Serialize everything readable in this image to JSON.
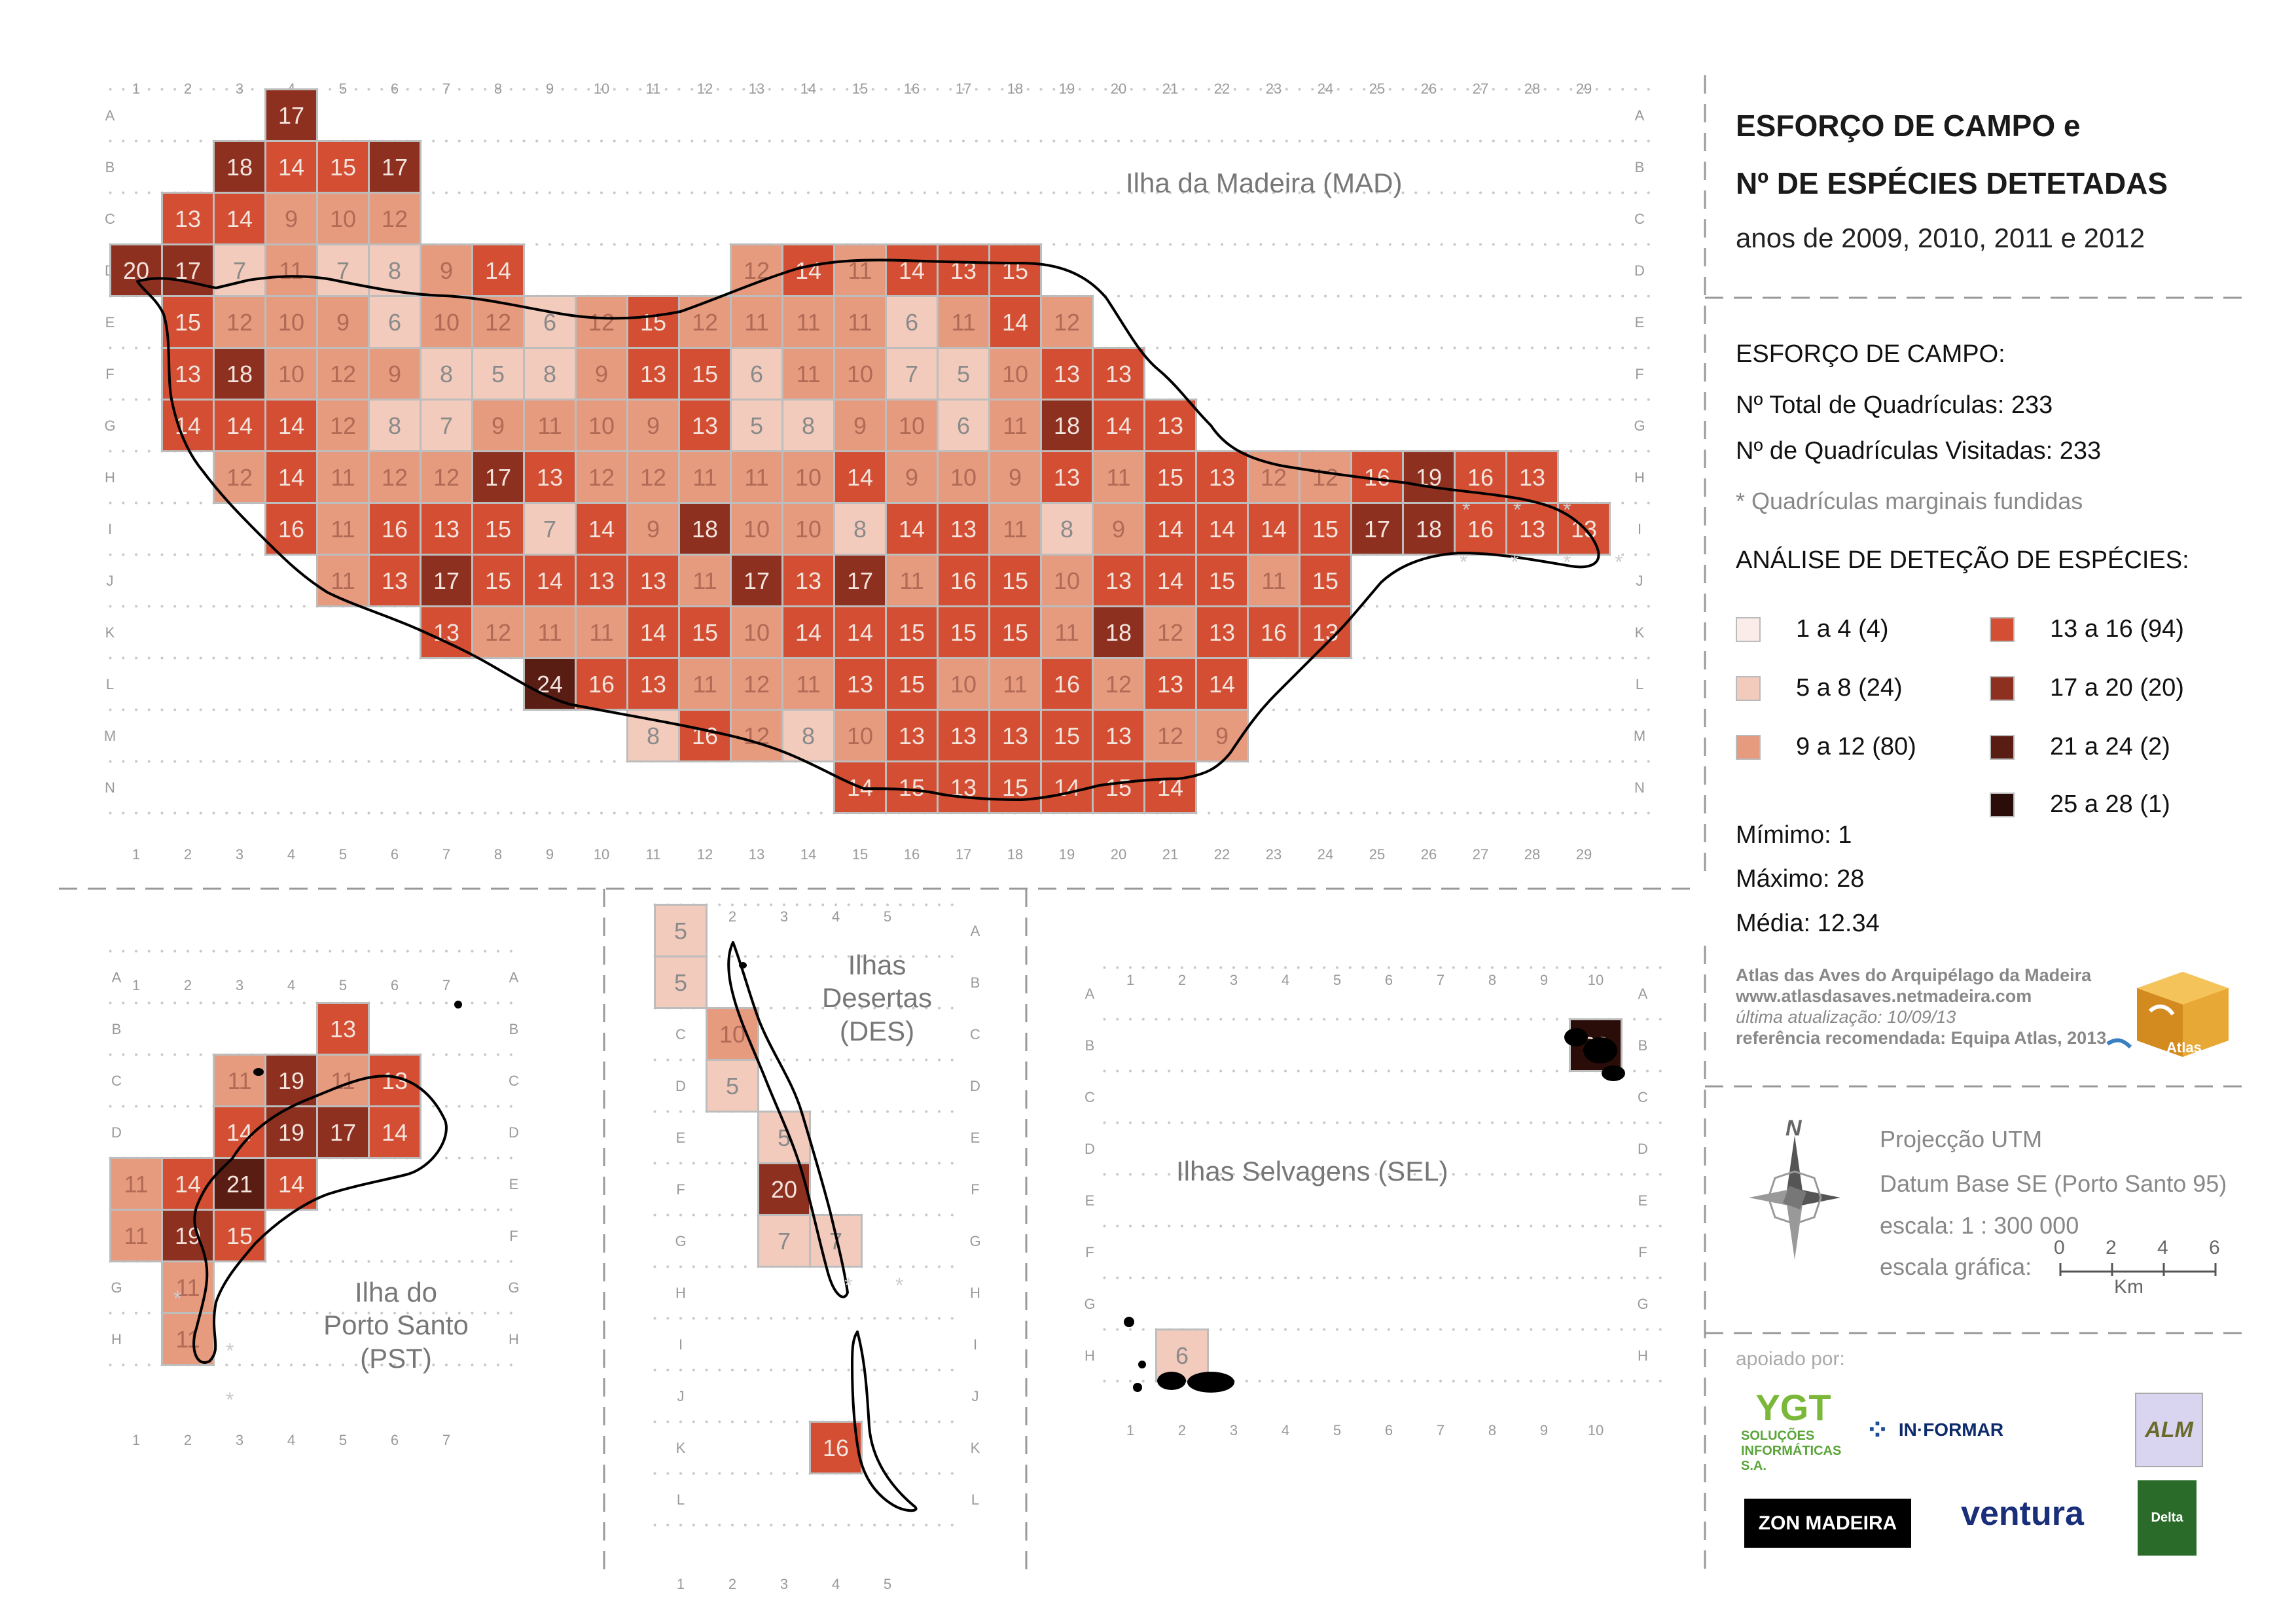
{
  "title": {
    "line1": "ESFORÇO DE CAMPO e",
    "line2": "Nº DE ESPÉCIES DETETADAS",
    "years": "anos de 2009, 2010, 2011 e 2012"
  },
  "effort": {
    "heading": "ESFORÇO DE CAMPO:",
    "total": "Nº Total de Quadrículas: 233",
    "visited": "Nº de Quadrículas Visitadas: 233",
    "note": "* Quadrículas marginais fundidas"
  },
  "legend": {
    "heading": "ANÁLISE DE DETEÇÃO DE ESPÉCIES:",
    "classes": [
      {
        "label": "1 a 4 (4)",
        "color": "#fbecea"
      },
      {
        "label": "5 a 8 (24)",
        "color": "#f2cbbd"
      },
      {
        "label": "9 a 12 (80)",
        "color": "#e69a7e"
      },
      {
        "label": "13 a 16 (94)",
        "color": "#d34e32"
      },
      {
        "label": "17 a 20 (20)",
        "color": "#8e3020"
      },
      {
        "label": "21 a 24 (2)",
        "color": "#5a1d14"
      },
      {
        "label": "25 a 28 (1)",
        "color": "#2a0d08"
      }
    ]
  },
  "stats": {
    "min": "Mímimo: 1",
    "max": "Máximo: 28",
    "mean": "Média: 12.34"
  },
  "credits": {
    "atlas": "Atlas das Aves do Arquipélago da Madeira",
    "url": "www.atlasdasaves.netmadeira.com",
    "updated": "última atualização: 10/09/13",
    "reference": "referência recomendada: Equipa Atlas, 2013",
    "logo_text": "Atlas"
  },
  "projection": {
    "north": "N",
    "line1": "Projecção UTM",
    "line2": "Datum Base SE (Porto Santo 95)",
    "line3": "escala:  1 : 300 000",
    "line4": "escala gráfica:",
    "scale_ticks": [
      "0",
      "2",
      "4",
      "6"
    ],
    "scale_unit": "Km"
  },
  "supporters": {
    "heading": "apoiado por:",
    "logos": [
      "SOLUÇÕES INFORMÁTICAS S.A.",
      "IN·FORMAR",
      "ALM",
      "ZON MADEIRA",
      "ventura",
      "Delta"
    ]
  },
  "islands": {
    "mad": "Ilha da Madeira (MAD)",
    "pst": [
      "Ilha do",
      "Porto Santo",
      "(PST)"
    ],
    "des": [
      "Ilhas",
      "Desertas",
      "(DES)"
    ],
    "sel": "Ilhas Selvagens (SEL)"
  },
  "grids": {
    "mad": {
      "cols": [
        "1",
        "2",
        "3",
        "4",
        "5",
        "6",
        "7",
        "8",
        "9",
        "10",
        "11",
        "12",
        "13",
        "14",
        "15",
        "16",
        "17",
        "18",
        "19",
        "20",
        "21",
        "22",
        "23",
        "24",
        "25",
        "26",
        "27",
        "28",
        "29"
      ],
      "rows": [
        "A",
        "B",
        "C",
        "D",
        "E",
        "F",
        "G",
        "H",
        "I",
        "J",
        "K",
        "L",
        "M",
        "N"
      ],
      "cells": [
        [
          "A",
          4,
          17
        ],
        [
          "B",
          3,
          18
        ],
        [
          "B",
          4,
          14
        ],
        [
          "B",
          5,
          15
        ],
        [
          "B",
          6,
          17
        ],
        [
          "C",
          2,
          13
        ],
        [
          "C",
          3,
          14
        ],
        [
          "C",
          4,
          9
        ],
        [
          "C",
          5,
          10
        ],
        [
          "C",
          6,
          12
        ],
        [
          "D",
          1,
          20
        ],
        [
          "D",
          2,
          17
        ],
        [
          "D",
          3,
          7
        ],
        [
          "D",
          4,
          11
        ],
        [
          "D",
          5,
          7
        ],
        [
          "D",
          6,
          8
        ],
        [
          "D",
          7,
          9
        ],
        [
          "D",
          8,
          14
        ],
        [
          "D",
          13,
          12
        ],
        [
          "D",
          14,
          14
        ],
        [
          "D",
          15,
          11
        ],
        [
          "D",
          16,
          14
        ],
        [
          "D",
          17,
          13
        ],
        [
          "D",
          18,
          15
        ],
        [
          "E",
          2,
          15
        ],
        [
          "E",
          3,
          12
        ],
        [
          "E",
          4,
          10
        ],
        [
          "E",
          5,
          9
        ],
        [
          "E",
          6,
          6
        ],
        [
          "E",
          7,
          10
        ],
        [
          "E",
          8,
          12
        ],
        [
          "E",
          9,
          6
        ],
        [
          "E",
          10,
          12
        ],
        [
          "E",
          11,
          15
        ],
        [
          "E",
          12,
          12
        ],
        [
          "E",
          13,
          11
        ],
        [
          "E",
          14,
          11
        ],
        [
          "E",
          15,
          11
        ],
        [
          "E",
          16,
          6
        ],
        [
          "E",
          17,
          11
        ],
        [
          "E",
          18,
          14
        ],
        [
          "E",
          19,
          12
        ],
        [
          "F",
          2,
          13
        ],
        [
          "F",
          3,
          18
        ],
        [
          "F",
          4,
          10
        ],
        [
          "F",
          5,
          12
        ],
        [
          "F",
          6,
          9
        ],
        [
          "F",
          7,
          8
        ],
        [
          "F",
          8,
          5
        ],
        [
          "F",
          9,
          8
        ],
        [
          "F",
          10,
          9
        ],
        [
          "F",
          11,
          13
        ],
        [
          "F",
          12,
          15
        ],
        [
          "F",
          13,
          6
        ],
        [
          "F",
          14,
          11
        ],
        [
          "F",
          15,
          10
        ],
        [
          "F",
          16,
          7
        ],
        [
          "F",
          17,
          5
        ],
        [
          "F",
          18,
          10
        ],
        [
          "F",
          19,
          13
        ],
        [
          "F",
          20,
          13
        ],
        [
          "G",
          2,
          14
        ],
        [
          "G",
          3,
          14
        ],
        [
          "G",
          4,
          14
        ],
        [
          "G",
          5,
          12
        ],
        [
          "G",
          6,
          8
        ],
        [
          "G",
          7,
          7
        ],
        [
          "G",
          8,
          9
        ],
        [
          "G",
          9,
          11
        ],
        [
          "G",
          10,
          10
        ],
        [
          "G",
          11,
          9
        ],
        [
          "G",
          12,
          13
        ],
        [
          "G",
          13,
          5
        ],
        [
          "G",
          14,
          8
        ],
        [
          "G",
          15,
          9
        ],
        [
          "G",
          16,
          10
        ],
        [
          "G",
          17,
          6
        ],
        [
          "G",
          18,
          11
        ],
        [
          "G",
          19,
          18
        ],
        [
          "G",
          20,
          14
        ],
        [
          "G",
          21,
          13
        ],
        [
          "H",
          3,
          12
        ],
        [
          "H",
          4,
          14
        ],
        [
          "H",
          5,
          11
        ],
        [
          "H",
          6,
          12
        ],
        [
          "H",
          7,
          12
        ],
        [
          "H",
          8,
          17
        ],
        [
          "H",
          9,
          13
        ],
        [
          "H",
          10,
          12
        ],
        [
          "H",
          11,
          12
        ],
        [
          "H",
          12,
          11
        ],
        [
          "H",
          13,
          11
        ],
        [
          "H",
          14,
          10
        ],
        [
          "H",
          15,
          14
        ],
        [
          "H",
          16,
          9
        ],
        [
          "H",
          17,
          10
        ],
        [
          "H",
          18,
          9
        ],
        [
          "H",
          19,
          13
        ],
        [
          "H",
          20,
          11
        ],
        [
          "H",
          21,
          15
        ],
        [
          "H",
          22,
          13
        ],
        [
          "H",
          23,
          12
        ],
        [
          "H",
          24,
          12
        ],
        [
          "H",
          25,
          16
        ],
        [
          "H",
          26,
          19
        ],
        [
          "H",
          27,
          16
        ],
        [
          "H",
          28,
          13
        ],
        [
          "I",
          4,
          16
        ],
        [
          "I",
          5,
          11
        ],
        [
          "I",
          6,
          16
        ],
        [
          "I",
          7,
          13
        ],
        [
          "I",
          8,
          15
        ],
        [
          "I",
          9,
          7
        ],
        [
          "I",
          10,
          14
        ],
        [
          "I",
          11,
          9
        ],
        [
          "I",
          12,
          18
        ],
        [
          "I",
          13,
          10
        ],
        [
          "I",
          14,
          10
        ],
        [
          "I",
          15,
          8
        ],
        [
          "I",
          16,
          14
        ],
        [
          "I",
          17,
          13
        ],
        [
          "I",
          18,
          11
        ],
        [
          "I",
          19,
          8
        ],
        [
          "I",
          20,
          9
        ],
        [
          "I",
          21,
          14
        ],
        [
          "I",
          22,
          14
        ],
        [
          "I",
          23,
          14
        ],
        [
          "I",
          24,
          15
        ],
        [
          "I",
          25,
          17
        ],
        [
          "I",
          26,
          18
        ],
        [
          "I",
          27,
          16
        ],
        [
          "I",
          28,
          13
        ],
        [
          "I",
          29,
          13
        ],
        [
          "J",
          5,
          11
        ],
        [
          "J",
          6,
          13
        ],
        [
          "J",
          7,
          17
        ],
        [
          "J",
          8,
          15
        ],
        [
          "J",
          9,
          14
        ],
        [
          "J",
          10,
          13
        ],
        [
          "J",
          11,
          13
        ],
        [
          "J",
          12,
          11
        ],
        [
          "J",
          13,
          17
        ],
        [
          "J",
          14,
          13
        ],
        [
          "J",
          15,
          17
        ],
        [
          "J",
          16,
          11
        ],
        [
          "J",
          17,
          16
        ],
        [
          "J",
          18,
          15
        ],
        [
          "J",
          19,
          10
        ],
        [
          "J",
          20,
          13
        ],
        [
          "J",
          21,
          14
        ],
        [
          "J",
          22,
          15
        ],
        [
          "J",
          23,
          11
        ],
        [
          "J",
          24,
          15
        ],
        [
          "K",
          7,
          13
        ],
        [
          "K",
          8,
          12
        ],
        [
          "K",
          9,
          11
        ],
        [
          "K",
          10,
          11
        ],
        [
          "K",
          11,
          14
        ],
        [
          "K",
          12,
          15
        ],
        [
          "K",
          13,
          10
        ],
        [
          "K",
          14,
          14
        ],
        [
          "K",
          15,
          14
        ],
        [
          "K",
          16,
          15
        ],
        [
          "K",
          17,
          15
        ],
        [
          "K",
          18,
          15
        ],
        [
          "K",
          19,
          11
        ],
        [
          "K",
          20,
          18
        ],
        [
          "K",
          21,
          12
        ],
        [
          "K",
          22,
          13
        ],
        [
          "K",
          23,
          16
        ],
        [
          "K",
          24,
          13
        ],
        [
          "L",
          9,
          24
        ],
        [
          "L",
          10,
          16
        ],
        [
          "L",
          11,
          13
        ],
        [
          "L",
          12,
          11
        ],
        [
          "L",
          13,
          12
        ],
        [
          "L",
          14,
          11
        ],
        [
          "L",
          15,
          13
        ],
        [
          "L",
          16,
          15
        ],
        [
          "L",
          17,
          10
        ],
        [
          "L",
          18,
          11
        ],
        [
          "L",
          19,
          16
        ],
        [
          "L",
          20,
          12
        ],
        [
          "L",
          21,
          13
        ],
        [
          "L",
          22,
          14
        ],
        [
          "M",
          11,
          8
        ],
        [
          "M",
          12,
          16
        ],
        [
          "M",
          13,
          12
        ],
        [
          "M",
          14,
          8
        ],
        [
          "M",
          15,
          10
        ],
        [
          "M",
          16,
          13
        ],
        [
          "M",
          17,
          13
        ],
        [
          "M",
          18,
          13
        ],
        [
          "M",
          19,
          15
        ],
        [
          "M",
          20,
          13
        ],
        [
          "M",
          21,
          12
        ],
        [
          "M",
          22,
          9
        ],
        [
          "N",
          15,
          14
        ],
        [
          "N",
          16,
          15
        ],
        [
          "N",
          17,
          13
        ],
        [
          "N",
          18,
          15
        ],
        [
          "N",
          19,
          14
        ],
        [
          "N",
          20,
          15
        ],
        [
          "N",
          21,
          14
        ]
      ]
    },
    "pst": {
      "cols": [
        "1",
        "2",
        "3",
        "4",
        "5",
        "6",
        "7"
      ],
      "rows": [
        "A",
        "B",
        "C",
        "D",
        "E",
        "F",
        "G",
        "H"
      ],
      "cells": [
        [
          "B",
          5,
          13
        ],
        [
          "C",
          3,
          11
        ],
        [
          "C",
          4,
          19
        ],
        [
          "C",
          5,
          11
        ],
        [
          "C",
          6,
          13
        ],
        [
          "D",
          3,
          14
        ],
        [
          "D",
          4,
          19
        ],
        [
          "D",
          5,
          17
        ],
        [
          "D",
          6,
          14
        ],
        [
          "E",
          1,
          11
        ],
        [
          "E",
          2,
          14
        ],
        [
          "E",
          3,
          21
        ],
        [
          "E",
          4,
          14
        ],
        [
          "F",
          1,
          11
        ],
        [
          "F",
          2,
          19
        ],
        [
          "F",
          3,
          15
        ],
        [
          "G",
          2,
          11
        ],
        [
          "H",
          2,
          11
        ]
      ]
    },
    "des": {
      "cols": [
        "1",
        "2",
        "3",
        "4",
        "5"
      ],
      "rows": [
        "A",
        "B",
        "C",
        "D",
        "E",
        "F",
        "G",
        "H",
        "I",
        "J",
        "K",
        "L"
      ],
      "cells": [
        [
          "A",
          1,
          5
        ],
        [
          "B",
          1,
          5
        ],
        [
          "C",
          2,
          10
        ],
        [
          "D",
          2,
          5
        ],
        [
          "E",
          3,
          5
        ],
        [
          "F",
          3,
          20
        ],
        [
          "G",
          3,
          7
        ],
        [
          "G",
          4,
          7
        ],
        [
          "K",
          4,
          16
        ]
      ]
    },
    "sel": {
      "cols": [
        "1",
        "2",
        "3",
        "4",
        "5",
        "6",
        "7",
        "8",
        "9",
        "10"
      ],
      "rows": [
        "A",
        "B",
        "C",
        "D",
        "E",
        "F",
        "G",
        "H"
      ],
      "cells": [
        [
          "B",
          10,
          28
        ],
        [
          "H",
          2,
          6
        ]
      ]
    }
  }
}
